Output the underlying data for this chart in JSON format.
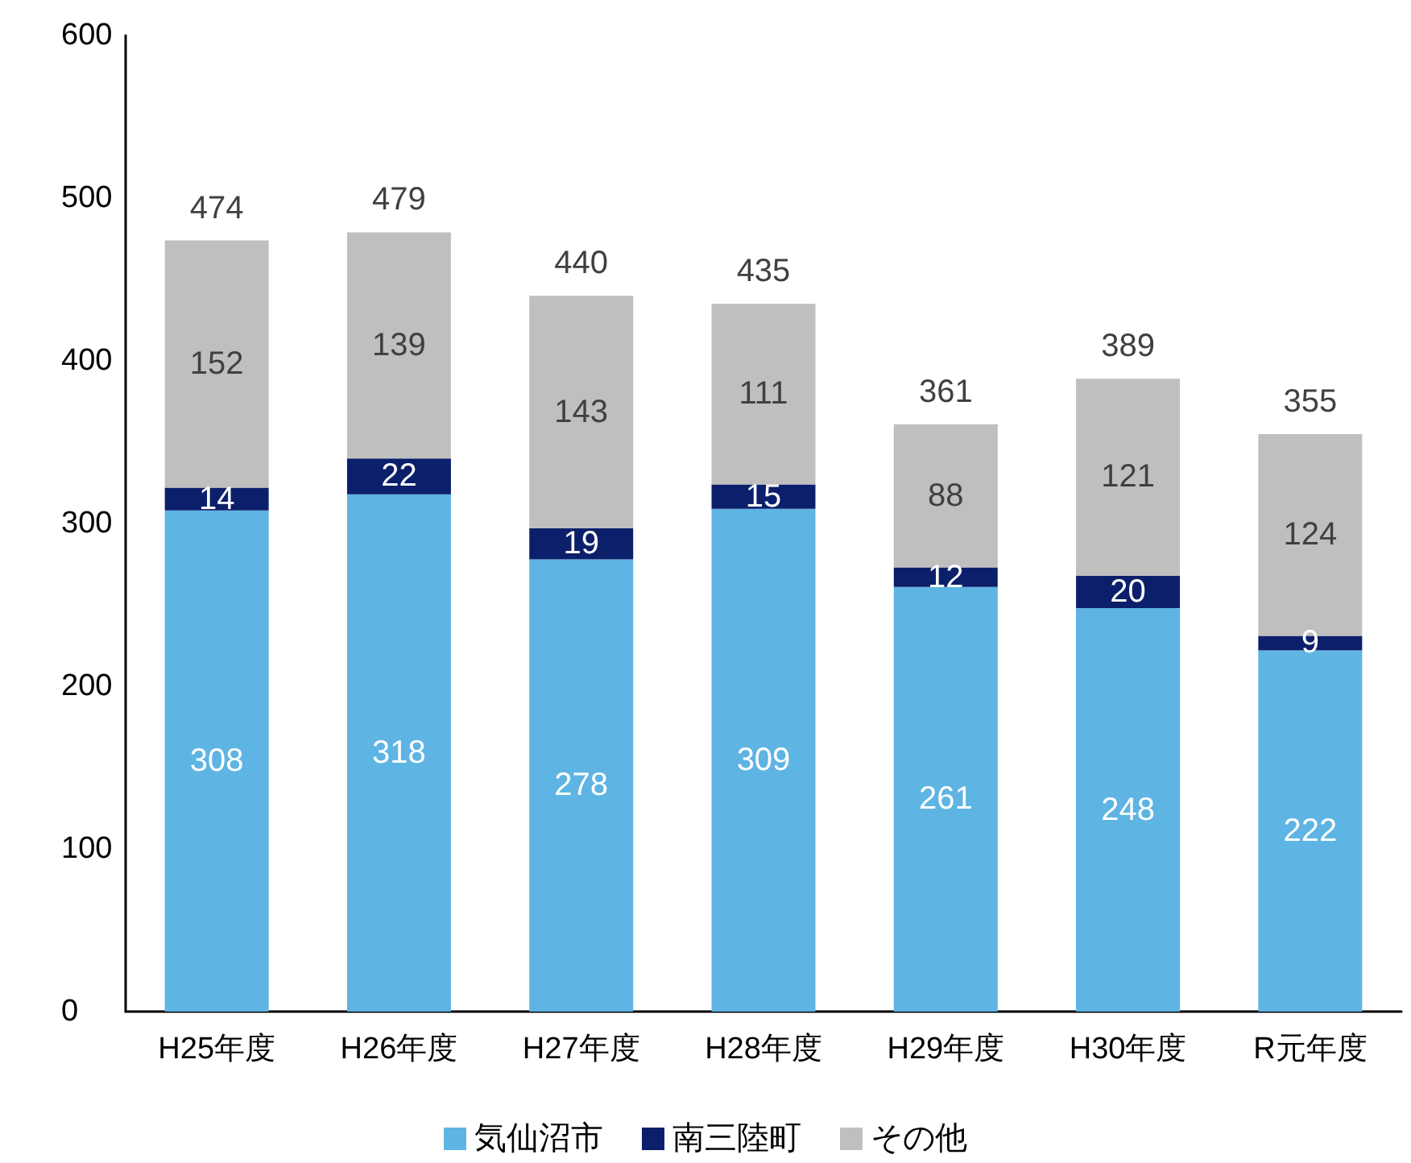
{
  "chart_data": {
    "type": "bar",
    "stacked": true,
    "categories": [
      "H25年度",
      "H26年度",
      "H27年度",
      "H28年度",
      "H29年度",
      "H30年度",
      "R元年度"
    ],
    "series": [
      {
        "name": "気仙沼市",
        "color": "#5eb4e3",
        "values": [
          308,
          318,
          278,
          309,
          261,
          248,
          222
        ]
      },
      {
        "name": "南三陸町",
        "color": "#0c1f6b",
        "values": [
          14,
          22,
          19,
          15,
          12,
          20,
          9
        ]
      },
      {
        "name": "その他",
        "color": "#bfbfbf",
        "values": [
          152,
          139,
          143,
          111,
          88,
          121,
          124
        ]
      }
    ],
    "totals": [
      "474",
      "479",
      "440",
      "435",
      "361",
      "389",
      "355"
    ],
    "ylim": [
      0,
      600
    ],
    "yticks": [
      0,
      100,
      200,
      300,
      400,
      500,
      600
    ],
    "data_labels": true,
    "legend": "bottom",
    "grid": false
  }
}
